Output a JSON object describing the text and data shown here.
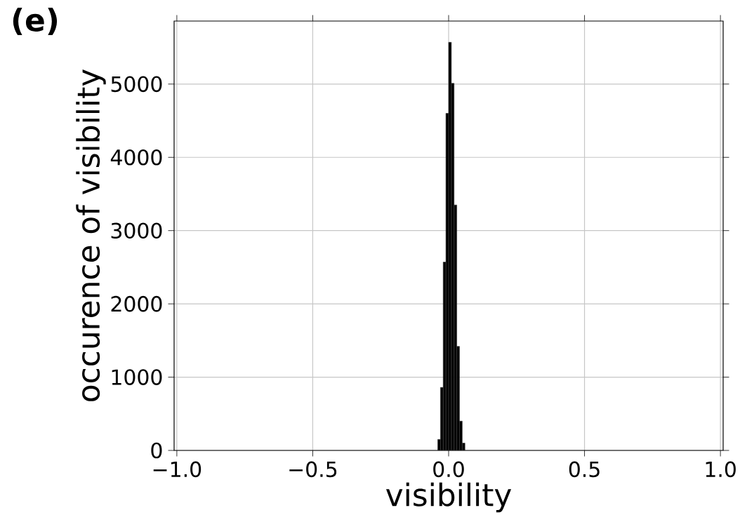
{
  "chart_data": {
    "type": "histogram",
    "xlabel": "visibility",
    "ylabel": "occurence of visibility",
    "annotations": [
      "(e)"
    ],
    "bins": [
      -0.04,
      -0.03,
      -0.02,
      -0.01,
      0.0,
      0.01,
      0.02,
      0.03,
      0.04,
      0.05,
      0.06
    ],
    "values": [
      150,
      860,
      2570,
      4600,
      5570,
      5010,
      3350,
      1420,
      400,
      100
    ],
    "color": "#000000",
    "xlim": [
      -1.01,
      1.01
    ],
    "ylim": [
      0,
      5860
    ],
    "xticks": [
      {
        "value": -1.0,
        "label": "−1.0"
      },
      {
        "value": -0.5,
        "label": "−0.5"
      },
      {
        "value": 0.0,
        "label": "0.0"
      },
      {
        "value": 0.5,
        "label": "0.5"
      },
      {
        "value": 1.0,
        "label": "1.0"
      }
    ],
    "yticks": [
      0,
      1000,
      2000,
      3000,
      4000,
      5000
    ],
    "grid": true
  }
}
